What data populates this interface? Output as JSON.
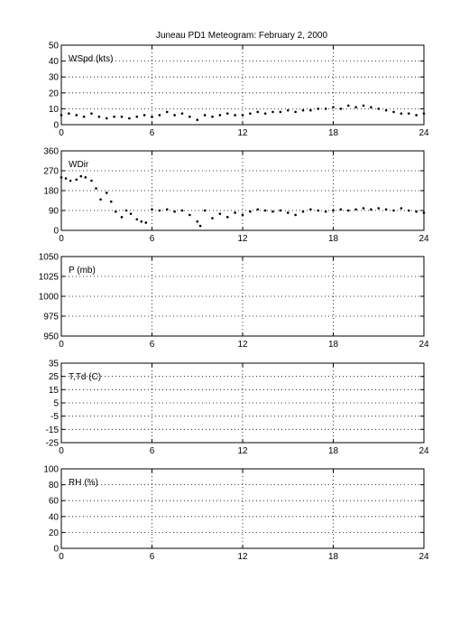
{
  "title": "Juneau PD1 Meteogram:  February  2, 2000",
  "chart_data": [
    {
      "type": "scatter",
      "label": "WSpd (kts)",
      "ylim": [
        0,
        50
      ],
      "yticks": [
        0,
        10,
        20,
        30,
        40,
        50
      ],
      "xlim": [
        0,
        24
      ],
      "xticks": [
        0,
        6,
        12,
        18,
        24
      ],
      "grid": true,
      "series": [
        {
          "x": [
            0,
            0.5,
            1,
            1.5,
            2,
            2.5,
            3,
            3.5,
            4,
            4.5,
            5,
            5.5,
            6,
            6.5,
            7,
            7.5,
            8,
            8.5,
            9,
            9.5,
            10,
            10.5,
            11,
            11.5,
            12,
            12.5,
            13,
            13.5,
            14,
            14.5,
            15,
            15.5,
            16,
            16.5,
            17,
            17.5,
            18,
            18.5,
            19,
            19.5,
            20,
            20.5,
            21,
            21.5,
            22,
            22.5,
            23,
            23.5,
            24
          ],
          "values": [
            6,
            7,
            6,
            5,
            7,
            5,
            4,
            5,
            5,
            4,
            5,
            6,
            5,
            6,
            8,
            6,
            7,
            5,
            3,
            6,
            5,
            6,
            7,
            6,
            6,
            7,
            8,
            7,
            8,
            8,
            9,
            8,
            9,
            9,
            10,
            10,
            11,
            10,
            12,
            11,
            12,
            11,
            10,
            9,
            8,
            7,
            7,
            6,
            7
          ]
        }
      ]
    },
    {
      "type": "scatter",
      "label": "WDir",
      "ylim": [
        0,
        360
      ],
      "yticks": [
        0,
        90,
        180,
        270,
        360
      ],
      "xlim": [
        0,
        24
      ],
      "xticks": [
        0,
        6,
        12,
        18,
        24
      ],
      "grid": true,
      "series": [
        {
          "x": [
            0,
            0.3,
            0.6,
            1,
            1.3,
            1.6,
            2,
            2.3,
            2.6,
            3,
            3.3,
            3.6,
            4,
            4.3,
            4.6,
            5,
            5.3,
            5.6,
            6,
            6.5,
            7,
            7.5,
            8,
            8.5,
            9,
            9.2,
            9.5,
            10,
            10.5,
            11,
            11.5,
            12,
            12.5,
            13,
            13.5,
            14,
            14.5,
            15,
            15.5,
            16,
            16.5,
            17,
            17.5,
            18,
            18.5,
            19,
            19.5,
            20,
            20.5,
            21,
            21.5,
            22,
            22.5,
            23,
            23.5,
            24
          ],
          "values": [
            240,
            235,
            225,
            230,
            245,
            240,
            225,
            190,
            140,
            170,
            130,
            85,
            60,
            90,
            75,
            50,
            40,
            35,
            95,
            90,
            95,
            85,
            90,
            70,
            40,
            20,
            90,
            55,
            75,
            60,
            80,
            70,
            85,
            95,
            90,
            85,
            90,
            80,
            70,
            85,
            95,
            90,
            85,
            90,
            95,
            90,
            95,
            100,
            95,
            100,
            95,
            90,
            100,
            90,
            85,
            80
          ]
        }
      ]
    },
    {
      "type": "scatter",
      "label": "P (mb)",
      "ylim": [
        950,
        1050
      ],
      "yticks": [
        950,
        975,
        1000,
        1025,
        1050
      ],
      "xlim": [
        0,
        24
      ],
      "xticks": [
        0,
        6,
        12,
        18,
        24
      ],
      "grid": true,
      "series": []
    },
    {
      "type": "scatter",
      "label": "T,Td (C)",
      "ylim": [
        -25,
        35
      ],
      "yticks": [
        -25,
        -15,
        -5,
        5,
        15,
        25,
        35
      ],
      "xlim": [
        0,
        24
      ],
      "xticks": [
        0,
        6,
        12,
        18,
        24
      ],
      "grid": true,
      "series": []
    },
    {
      "type": "scatter",
      "label": "RH (%)",
      "ylim": [
        0,
        100
      ],
      "yticks": [
        0,
        20,
        40,
        60,
        80,
        100
      ],
      "xlim": [
        0,
        24
      ],
      "xticks": [
        0,
        6,
        12,
        18,
        24
      ],
      "grid": true,
      "series": []
    }
  ]
}
